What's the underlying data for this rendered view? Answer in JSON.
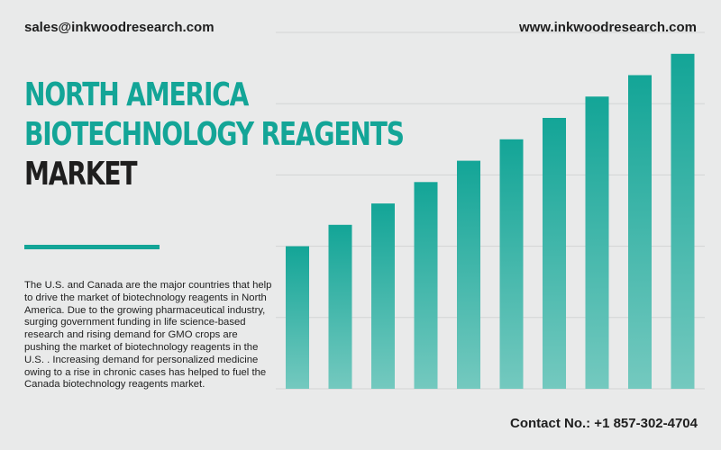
{
  "header": {
    "email": "sales@inkwoodresearch.com",
    "website": "www.inkwoodresearch.com"
  },
  "title": {
    "line1": "NORTH AMERICA",
    "line2": "BIOTECHNOLOGY REAGENTS",
    "line3": "MARKET"
  },
  "description": "The U.S. and Canada are the major countries that help to drive the market of biotechnology reagents in North America. Due to the growing pharmaceutical industry, surging government funding in life science-based research and rising demand for GMO crops are pushing the market of biotechnology reagents in the U.S. . Increasing demand for personalized medicine owing to a rise in chronic cases has helped to fuel the Canada biotechnology reagents market.",
  "contact": "Contact No.: +1 857-302-4704",
  "colors": {
    "accent": "#13a597",
    "bar_top": "#13a597",
    "bar_bottom": "#74c9bf",
    "text": "#1e1e1e",
    "background": "#e9eaea"
  },
  "chart_data": {
    "type": "bar",
    "values": [
      2.0,
      2.3,
      2.6,
      2.9,
      3.2,
      3.5,
      3.8,
      4.1,
      4.4,
      4.7
    ],
    "ylim": [
      0,
      5
    ],
    "grid": true
  }
}
